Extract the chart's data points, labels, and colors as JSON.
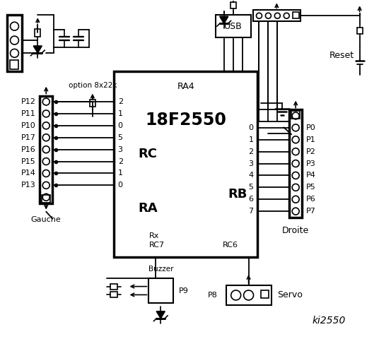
{
  "title": "ki2550",
  "bg_color": "#ffffff",
  "line_color": "#000000",
  "chip_label": "18F2550",
  "chip_sublabel": "RA4",
  "rc_label": "RC",
  "ra_label": "RA",
  "rb_label": "RB",
  "rc6_label": "RC6",
  "left_labels": [
    "P12",
    "P11",
    "P10",
    "P17",
    "P16",
    "P15",
    "P14",
    "P13"
  ],
  "right_labels": [
    "P0",
    "P1",
    "P2",
    "P3",
    "P4",
    "P5",
    "P6",
    "P7"
  ],
  "left_pins_rc": [
    "2",
    "1",
    "0"
  ],
  "left_pins_ra": [
    "5",
    "3",
    "2",
    "1",
    "0"
  ],
  "right_pins_rb": [
    "0",
    "1",
    "2",
    "3",
    "4",
    "5",
    "6",
    "7"
  ],
  "gauche_label": "Gauche",
  "droite_label": "Droite",
  "buzzer_label": "Buzzer",
  "servo_label": "Servo",
  "p8_label": "P8",
  "p9_label": "P9",
  "option_label": "option 8x22k",
  "reset_label": "Reset",
  "usb_label": "USB"
}
